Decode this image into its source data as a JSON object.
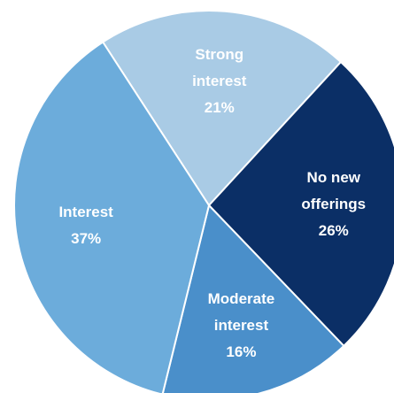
{
  "chart_data": {
    "type": "pie",
    "categories": [
      "Strong interest",
      "No new offerings",
      "Moderate interest",
      "Interest"
    ],
    "values": [
      21,
      26,
      16,
      37
    ],
    "value_labels": [
      "21%",
      "26%",
      "16%",
      "37%"
    ],
    "colors": [
      "#a9cbe5",
      "#0b2f66",
      "#4a8fca",
      "#6cacdb"
    ]
  }
}
